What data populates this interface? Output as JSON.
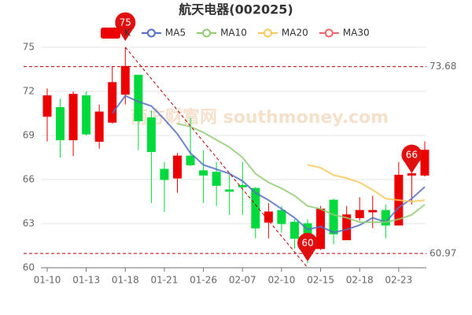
{
  "chart_data": {
    "type": "candlestick",
    "title": "航天电器(002025)",
    "watermark": "南方财富网 southmoney.com",
    "categories": [
      "01-10",
      null,
      null,
      "01-13",
      null,
      null,
      "01-18",
      null,
      null,
      "01-21",
      null,
      null,
      "01-26",
      null,
      null,
      "02-07",
      null,
      null,
      "02-10",
      null,
      null,
      "02-15",
      null,
      null,
      "02-18",
      null,
      null,
      "02-23",
      null,
      null
    ],
    "series": [
      {
        "name": "K",
        "color": "#ec0000",
        "down_color": "#00da3c",
        "open": [
          70.3,
          70.9,
          68.7,
          71.7,
          68.6,
          69.9,
          71.8,
          73.1,
          70.2,
          66.7,
          66.1,
          67.6,
          66.6,
          66.5,
          65.3,
          65.6,
          65.4,
          63.1,
          63.9,
          63.1,
          63.0,
          61.3,
          64.6,
          61.9,
          63.4,
          63.8,
          63.9,
          62.9,
          66.3,
          66.3
        ],
        "close": [
          71.7,
          68.7,
          71.8,
          69.1,
          70.6,
          72.6,
          73.7,
          70.0,
          67.9,
          66.0,
          67.6,
          67.0,
          66.3,
          65.6,
          65.2,
          65.5,
          62.7,
          63.8,
          63.0,
          62.0,
          61.9,
          64.0,
          62.3,
          63.6,
          63.9,
          63.9,
          62.9,
          66.3,
          66.4,
          68.0
        ],
        "high": [
          72.2,
          71.5,
          72.0,
          72.0,
          71.1,
          73.7,
          75.0,
          73.1,
          70.7,
          67.2,
          67.8,
          70.2,
          68.0,
          67.2,
          66.5,
          67.2,
          65.5,
          64.4,
          64.2,
          63.3,
          63.3,
          64.2,
          64.7,
          64.2,
          64.8,
          64.9,
          64.3,
          67.2,
          67.0,
          68.6
        ],
        "low": [
          68.6,
          67.5,
          67.6,
          69.0,
          68.1,
          69.8,
          71.1,
          68.0,
          64.4,
          63.8,
          65.1,
          66.9,
          64.4,
          64.2,
          63.6,
          63.6,
          62.0,
          62.0,
          62.4,
          61.3,
          60.3,
          61.2,
          61.6,
          61.9,
          63.2,
          62.7,
          62.0,
          62.9,
          64.3,
          66.2
        ]
      },
      {
        "name": "MA5",
        "color": "#5470c6",
        "values": [
          null,
          null,
          null,
          null,
          null,
          70.5,
          71.7,
          71.3,
          71.0,
          70.1,
          69.1,
          67.8,
          67.0,
          66.7,
          66.4,
          65.9,
          65.1,
          64.6,
          64.0,
          63.4,
          62.6,
          62.8,
          62.4,
          62.6,
          62.9,
          63.4,
          63.1,
          64.1,
          64.7,
          65.5
        ]
      },
      {
        "name": "MA10",
        "color": "#91cc75",
        "values": [
          null,
          null,
          null,
          null,
          null,
          null,
          null,
          null,
          null,
          null,
          69.8,
          69.6,
          69.2,
          68.7,
          68.2,
          67.5,
          66.4,
          65.8,
          65.4,
          64.9,
          64.2,
          64.0,
          63.6,
          63.4,
          63.1,
          63.1,
          63.1,
          63.3,
          63.6,
          64.3
        ]
      },
      {
        "name": "MA20",
        "color": "#fac858",
        "values": [
          null,
          null,
          null,
          null,
          null,
          null,
          null,
          null,
          null,
          null,
          null,
          null,
          null,
          null,
          null,
          null,
          null,
          null,
          null,
          null,
          67.0,
          66.8,
          66.3,
          66.1,
          65.8,
          65.3,
          64.7,
          64.6,
          64.5,
          64.6
        ]
      },
      {
        "name": "MA30",
        "color": "#ee6666",
        "values": [
          null,
          null,
          null,
          null,
          null,
          null,
          null,
          null,
          null,
          null,
          null,
          null,
          null,
          null,
          null,
          null,
          null,
          null,
          null,
          null,
          null,
          null,
          null,
          null,
          null,
          null,
          null,
          null,
          null,
          null
        ]
      }
    ],
    "ylim": [
      60,
      75
    ],
    "yticks": [
      60,
      63,
      66,
      69,
      72,
      75
    ],
    "grid": true,
    "reference_lines": [
      {
        "value": 73.68,
        "color": "#c00000"
      },
      {
        "value": 60.97,
        "color": "#c00000"
      }
    ],
    "markers": [
      {
        "index": 6,
        "value": 75,
        "color": "#e01010"
      },
      {
        "index": 20,
        "value": 60,
        "color": "#e01010"
      },
      {
        "index": 28,
        "value": 66,
        "color": "#e01010"
      }
    ]
  }
}
